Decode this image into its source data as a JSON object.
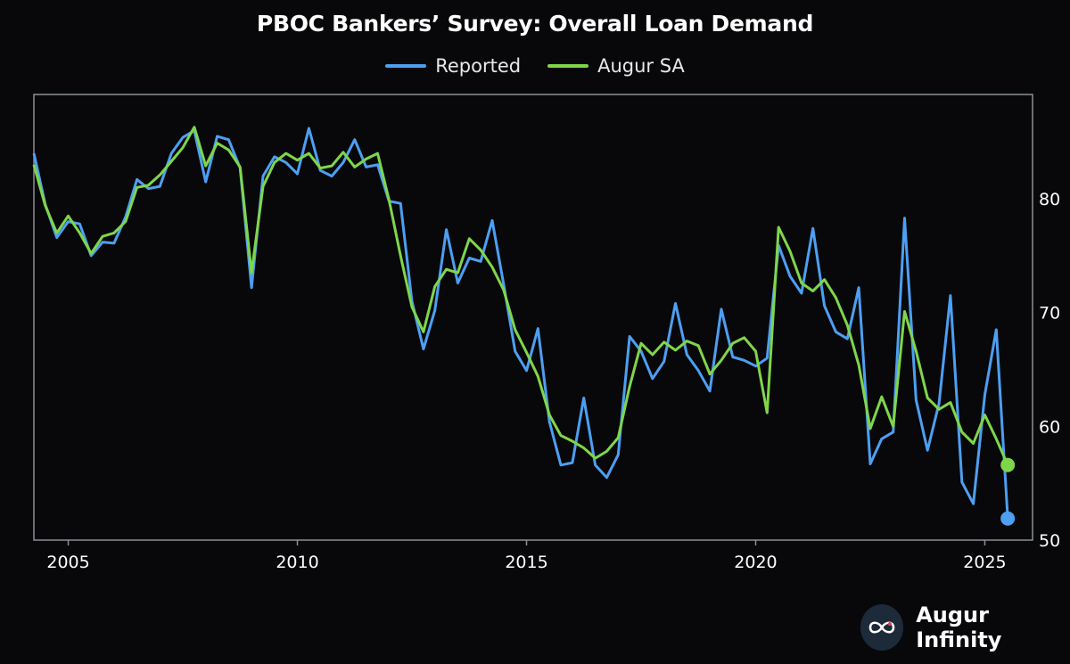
{
  "chart_data": {
    "type": "line",
    "title": "PBOC Bankers’ Survey: Overall Loan Demand",
    "xlabel": "",
    "ylabel": "",
    "xlim": [
      2004.25,
      2025.75
    ],
    "ylim": [
      50,
      88
    ],
    "x_ticks": [
      "2005",
      "2010",
      "2015",
      "2020",
      "2025"
    ],
    "y_ticks": [
      "50",
      "60",
      "70",
      "80"
    ],
    "grid": false,
    "legend": "top-center",
    "x": [
      2004.25,
      2004.5,
      2004.75,
      2005,
      2005.25,
      2005.5,
      2005.75,
      2006,
      2006.25,
      2006.5,
      2006.75,
      2007,
      2007.25,
      2007.5,
      2007.75,
      2008,
      2008.25,
      2008.5,
      2008.75,
      2009,
      2009.25,
      2009.5,
      2009.75,
      2010,
      2010.25,
      2010.5,
      2010.75,
      2011,
      2011.25,
      2011.5,
      2011.75,
      2012,
      2012.25,
      2012.5,
      2012.75,
      2013,
      2013.25,
      2013.5,
      2013.75,
      2014,
      2014.25,
      2014.5,
      2014.75,
      2015,
      2015.25,
      2015.5,
      2015.75,
      2016,
      2016.25,
      2016.5,
      2016.75,
      2017,
      2017.25,
      2017.5,
      2017.75,
      2018,
      2018.25,
      2018.5,
      2018.75,
      2019,
      2019.25,
      2019.5,
      2019.75,
      2020,
      2020.25,
      2020.5,
      2020.75,
      2021,
      2021.25,
      2021.5,
      2021.75,
      2022,
      2022.25,
      2022.5,
      2022.75,
      2023,
      2023.25,
      2023.5,
      2023.75,
      2024,
      2024.25,
      2024.5,
      2024.75,
      2025,
      2025.25,
      2025.5
    ],
    "series": [
      {
        "name": "Reported",
        "color": "#4d9ff2",
        "values": [
          84.0,
          79.5,
          76.6,
          78.0,
          77.8,
          75.0,
          76.2,
          76.1,
          78.4,
          81.7,
          80.9,
          81.1,
          84.0,
          85.4,
          86.0,
          81.5,
          85.5,
          85.2,
          82.7,
          72.2,
          82.0,
          83.7,
          83.2,
          82.2,
          86.2,
          82.5,
          82.0,
          83.2,
          85.2,
          82.8,
          83.0,
          79.8,
          79.6,
          71.0,
          66.8,
          70.2,
          77.3,
          72.6,
          74.8,
          74.5,
          78.1,
          72.5,
          66.6,
          64.9,
          68.6,
          60.4,
          56.6,
          56.8,
          62.5,
          56.6,
          55.5,
          57.5,
          67.9,
          66.6,
          64.2,
          65.7,
          70.8,
          66.3,
          64.9,
          63.1,
          70.3,
          66.1,
          65.8,
          65.3,
          66.0,
          75.9,
          73.2,
          71.7,
          77.4,
          70.6,
          68.3,
          67.7,
          72.2,
          56.7,
          58.9,
          59.5,
          78.3,
          62.3,
          57.9,
          62.0,
          71.5,
          55.1,
          53.2,
          62.8,
          68.5,
          51.9
        ]
      },
      {
        "name": "Augur SA",
        "color": "#7fd64a",
        "values": [
          83.0,
          79.4,
          77.0,
          78.5,
          77.0,
          75.2,
          76.7,
          77.0,
          78.0,
          81.0,
          81.2,
          82.1,
          83.3,
          84.5,
          86.3,
          82.9,
          84.9,
          84.3,
          82.8,
          73.5,
          81.1,
          83.2,
          84.0,
          83.4,
          84.0,
          82.7,
          82.9,
          84.1,
          82.8,
          83.5,
          84.0,
          79.9,
          75.0,
          70.5,
          68.3,
          72.3,
          73.8,
          73.5,
          76.5,
          75.5,
          74.0,
          72.0,
          68.5,
          66.5,
          64.4,
          61.0,
          59.2,
          58.7,
          58.1,
          57.2,
          57.8,
          59.0,
          63.5,
          67.3,
          66.3,
          67.4,
          66.7,
          67.5,
          67.1,
          64.6,
          65.8,
          67.3,
          67.8,
          66.6,
          61.2,
          77.5,
          75.4,
          72.6,
          71.9,
          72.9,
          71.3,
          68.9,
          65.4,
          59.8,
          62.6,
          60.0,
          70.1,
          66.6,
          62.5,
          61.5,
          62.1,
          59.5,
          58.5,
          61.0,
          58.9,
          56.6
        ]
      }
    ]
  },
  "brand": {
    "name": "Augur Infinity",
    "icon": "infinity-logo-icon"
  },
  "colors": {
    "background": "#08080a",
    "axis": "#8a9096",
    "text": "#ffffff"
  }
}
